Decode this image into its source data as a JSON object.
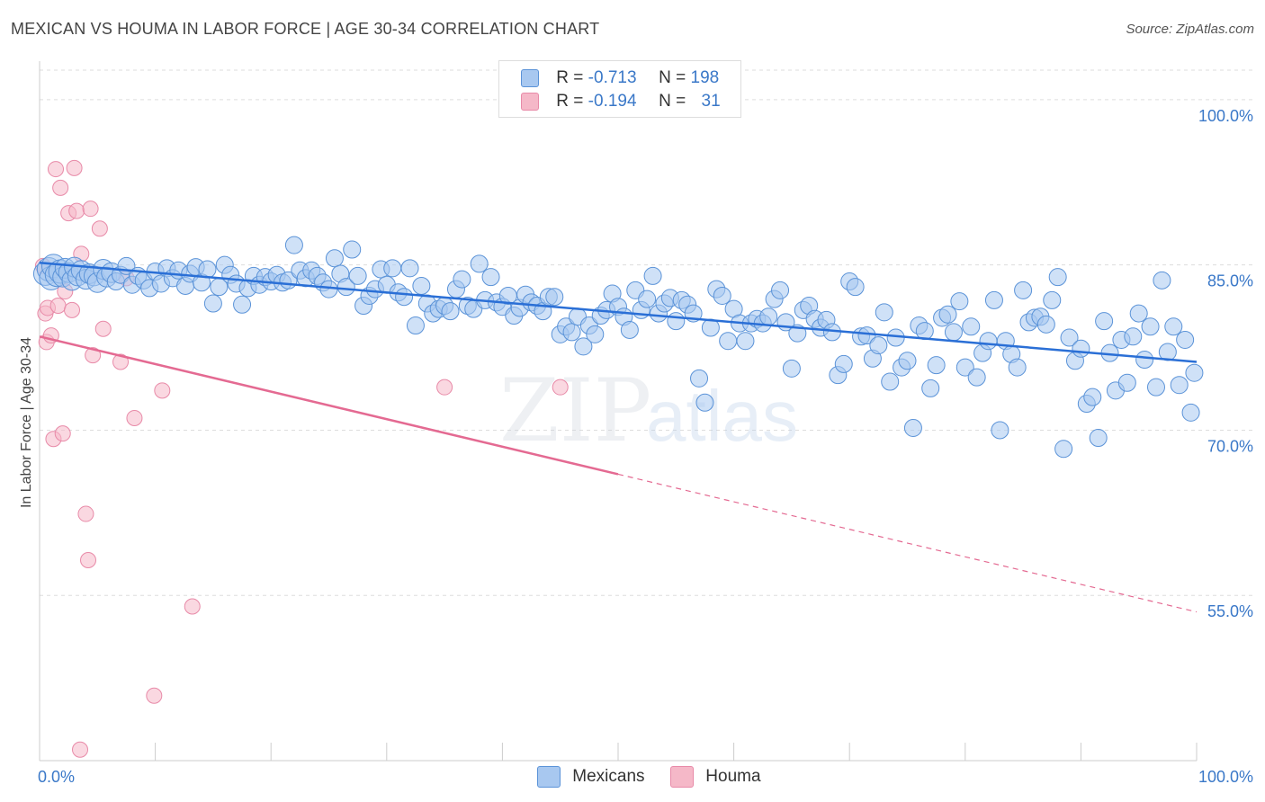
{
  "header": {
    "title": "MEXICAN VS HOUMA IN LABOR FORCE | AGE 30-34 CORRELATION CHART",
    "source": "Source: ZipAtlas.com"
  },
  "watermark": {
    "zip": "ZIP",
    "atlas": "atlas"
  },
  "legend": {
    "rows": [
      {
        "r_label": "R =",
        "r_value": "-0.713",
        "n_label": "N =",
        "n_value": "198"
      },
      {
        "r_label": "R =",
        "r_value": "-0.194",
        "n_label": "N =",
        "n_value": "31"
      }
    ],
    "bottom": [
      "Mexicans",
      "Houma"
    ]
  },
  "colors": {
    "mexicans_fill": "#a8c8f0",
    "mexicans_stroke": "#5b93d8",
    "mexicans_line": "#2a6fd6",
    "houma_fill": "#f5b8c8",
    "houma_stroke": "#e88aa8",
    "houma_line": "#e46a92",
    "tick_label": "#3a78c8",
    "grid": "#dddddd"
  },
  "chart_data": {
    "type": "scatter",
    "title": "MEXICAN VS HOUMA IN LABOR FORCE | AGE 30-34 CORRELATION CHART",
    "xlabel": "",
    "ylabel": "In Labor Force | Age 30-34",
    "xlim": [
      0,
      100
    ],
    "ylim": [
      40,
      103.5
    ],
    "x_tick_labels": [
      "0.0%",
      "100.0%"
    ],
    "y_ticks": [
      55,
      70,
      85,
      100
    ],
    "y_tick_labels": [
      "55.0%",
      "70.0%",
      "85.0%",
      "100.0%"
    ],
    "grid": true,
    "legend_position": "top-center",
    "series": [
      {
        "name": "Mexicans",
        "R": -0.713,
        "N": 198,
        "trend": {
          "x": [
            0,
            100
          ],
          "y": [
            85.2,
            76.2
          ]
        },
        "points": [
          [
            0.5,
            84.2
          ],
          [
            0.8,
            84.6
          ],
          [
            1.0,
            83.8
          ],
          [
            1.2,
            84.9
          ],
          [
            1.5,
            84.1
          ],
          [
            1.8,
            84.4
          ],
          [
            2.0,
            83.9
          ],
          [
            2.2,
            84.7
          ],
          [
            2.5,
            84.3
          ],
          [
            2.8,
            83.6
          ],
          [
            3.0,
            84.8
          ],
          [
            3.3,
            84.0
          ],
          [
            3.6,
            84.5
          ],
          [
            4.0,
            83.7
          ],
          [
            4.3,
            84.2
          ],
          [
            4.7,
            84.0
          ],
          [
            5.0,
            83.4
          ],
          [
            5.5,
            84.6
          ],
          [
            5.8,
            83.9
          ],
          [
            6.2,
            84.3
          ],
          [
            6.6,
            83.5
          ],
          [
            7.0,
            84.1
          ],
          [
            7.5,
            84.9
          ],
          [
            8.0,
            83.2
          ],
          [
            8.5,
            84.0
          ],
          [
            9.0,
            83.6
          ],
          [
            9.5,
            82.9
          ],
          [
            10.0,
            84.4
          ],
          [
            10.5,
            83.3
          ],
          [
            11.0,
            84.7
          ],
          [
            11.5,
            83.8
          ],
          [
            12.0,
            84.5
          ],
          [
            12.6,
            83.1
          ],
          [
            13.0,
            84.2
          ],
          [
            13.5,
            84.8
          ],
          [
            14.0,
            83.4
          ],
          [
            14.5,
            84.6
          ],
          [
            15.0,
            81.5
          ],
          [
            15.5,
            83.0
          ],
          [
            16.0,
            85.0
          ],
          [
            16.5,
            84.1
          ],
          [
            17.0,
            83.3
          ],
          [
            17.5,
            81.4
          ],
          [
            18.0,
            82.9
          ],
          [
            18.5,
            84.0
          ],
          [
            19.0,
            83.2
          ],
          [
            19.5,
            83.9
          ],
          [
            20.0,
            83.5
          ],
          [
            20.5,
            84.1
          ],
          [
            21.0,
            83.4
          ],
          [
            21.5,
            83.6
          ],
          [
            22.0,
            86.8
          ],
          [
            22.5,
            84.5
          ],
          [
            23.0,
            83.8
          ],
          [
            23.5,
            84.5
          ],
          [
            24.0,
            84.0
          ],
          [
            24.5,
            83.4
          ],
          [
            25.0,
            82.8
          ],
          [
            25.5,
            85.6
          ],
          [
            26.0,
            84.2
          ],
          [
            26.5,
            83.0
          ],
          [
            27.0,
            86.4
          ],
          [
            27.5,
            84.0
          ],
          [
            28.0,
            81.3
          ],
          [
            28.5,
            82.2
          ],
          [
            29.0,
            82.8
          ],
          [
            29.5,
            84.6
          ],
          [
            30.0,
            83.2
          ],
          [
            30.5,
            84.7
          ],
          [
            31.0,
            82.5
          ],
          [
            31.5,
            82.1
          ],
          [
            32.0,
            84.7
          ],
          [
            32.5,
            79.5
          ],
          [
            33.0,
            83.1
          ],
          [
            33.5,
            81.5
          ],
          [
            34.0,
            80.6
          ],
          [
            34.5,
            81.0
          ],
          [
            35.0,
            81.3
          ],
          [
            35.5,
            80.8
          ],
          [
            36.0,
            82.8
          ],
          [
            36.5,
            83.7
          ],
          [
            37.0,
            81.3
          ],
          [
            37.5,
            81.0
          ],
          [
            38.0,
            85.1
          ],
          [
            38.5,
            81.8
          ],
          [
            39.0,
            83.9
          ],
          [
            39.5,
            81.6
          ],
          [
            40.0,
            81.2
          ],
          [
            40.5,
            82.2
          ],
          [
            41.0,
            80.4
          ],
          [
            41.5,
            81.1
          ],
          [
            42.0,
            82.3
          ],
          [
            42.5,
            81.6
          ],
          [
            43.0,
            81.3
          ],
          [
            43.5,
            80.8
          ],
          [
            44.0,
            82.1
          ],
          [
            44.5,
            82.1
          ],
          [
            45.0,
            78.7
          ],
          [
            45.5,
            79.4
          ],
          [
            46.0,
            78.9
          ],
          [
            46.5,
            80.3
          ],
          [
            47.0,
            77.6
          ],
          [
            47.5,
            79.5
          ],
          [
            48.0,
            78.7
          ],
          [
            48.5,
            80.4
          ],
          [
            49.0,
            80.9
          ],
          [
            49.5,
            82.4
          ],
          [
            50.0,
            81.2
          ],
          [
            50.5,
            80.3
          ],
          [
            51.0,
            79.1
          ],
          [
            51.5,
            82.7
          ],
          [
            52.0,
            80.9
          ],
          [
            52.5,
            81.9
          ],
          [
            53.0,
            84.0
          ],
          [
            53.5,
            80.6
          ],
          [
            54.0,
            81.5
          ],
          [
            54.5,
            82.0
          ],
          [
            55.0,
            79.9
          ],
          [
            55.5,
            81.8
          ],
          [
            56.0,
            81.4
          ],
          [
            56.5,
            80.6
          ],
          [
            57.0,
            74.7
          ],
          [
            57.5,
            72.5
          ],
          [
            58.0,
            79.3
          ],
          [
            58.5,
            82.8
          ],
          [
            59.0,
            82.2
          ],
          [
            59.5,
            78.1
          ],
          [
            60.0,
            81.0
          ],
          [
            60.5,
            79.7
          ],
          [
            61.0,
            78.1
          ],
          [
            61.5,
            79.7
          ],
          [
            62.0,
            80.1
          ],
          [
            62.5,
            79.7
          ],
          [
            63.0,
            80.3
          ],
          [
            63.5,
            81.9
          ],
          [
            64.0,
            82.7
          ],
          [
            64.5,
            79.8
          ],
          [
            65.0,
            75.6
          ],
          [
            65.5,
            78.8
          ],
          [
            66.0,
            80.9
          ],
          [
            66.5,
            81.3
          ],
          [
            67.0,
            80.1
          ],
          [
            67.5,
            79.3
          ],
          [
            68.0,
            80.0
          ],
          [
            68.5,
            78.9
          ],
          [
            69.0,
            75.0
          ],
          [
            69.5,
            76.0
          ],
          [
            70.0,
            83.5
          ],
          [
            70.5,
            83.0
          ],
          [
            71.0,
            78.5
          ],
          [
            71.5,
            78.6
          ],
          [
            72.0,
            76.5
          ],
          [
            72.5,
            77.7
          ],
          [
            73.0,
            80.7
          ],
          [
            73.5,
            74.4
          ],
          [
            74.0,
            78.4
          ],
          [
            74.5,
            75.7
          ],
          [
            75.0,
            76.3
          ],
          [
            75.5,
            70.2
          ],
          [
            76.0,
            79.5
          ],
          [
            76.5,
            79.0
          ],
          [
            77.0,
            73.8
          ],
          [
            77.5,
            75.9
          ],
          [
            78.0,
            80.2
          ],
          [
            78.5,
            80.5
          ],
          [
            79.0,
            78.9
          ],
          [
            79.5,
            81.7
          ],
          [
            80.0,
            75.7
          ],
          [
            80.5,
            79.4
          ],
          [
            81.0,
            74.8
          ],
          [
            81.5,
            77.0
          ],
          [
            82.0,
            78.1
          ],
          [
            82.5,
            81.8
          ],
          [
            83.0,
            70.0
          ],
          [
            83.5,
            78.1
          ],
          [
            84.0,
            76.9
          ],
          [
            84.5,
            75.7
          ],
          [
            85.0,
            82.7
          ],
          [
            85.5,
            79.8
          ],
          [
            86.0,
            80.2
          ],
          [
            86.5,
            80.3
          ],
          [
            87.0,
            79.6
          ],
          [
            87.5,
            81.8
          ],
          [
            88.0,
            83.9
          ],
          [
            88.5,
            68.3
          ],
          [
            89.0,
            78.4
          ],
          [
            89.5,
            76.3
          ],
          [
            90.0,
            77.4
          ],
          [
            90.5,
            72.4
          ],
          [
            91.0,
            73.0
          ],
          [
            91.5,
            69.3
          ],
          [
            92.0,
            79.9
          ],
          [
            92.5,
            77.0
          ],
          [
            93.0,
            73.6
          ],
          [
            93.5,
            78.2
          ],
          [
            94.0,
            74.3
          ],
          [
            94.5,
            78.5
          ],
          [
            95.0,
            80.6
          ],
          [
            95.5,
            76.4
          ],
          [
            96.0,
            79.4
          ],
          [
            96.5,
            73.9
          ],
          [
            97.0,
            83.6
          ],
          [
            97.5,
            77.1
          ],
          [
            98.0,
            79.4
          ],
          [
            98.5,
            74.1
          ],
          [
            99.0,
            78.2
          ],
          [
            99.5,
            71.6
          ],
          [
            99.8,
            75.2
          ]
        ]
      },
      {
        "name": "Houma",
        "R": -0.194,
        "N": 31,
        "trend": {
          "x": [
            0,
            100
          ],
          "y": [
            78.5,
            53.5
          ],
          "solid_until_x": 50
        },
        "points": [
          [
            0.3,
            84.9
          ],
          [
            0.5,
            80.6
          ],
          [
            0.6,
            78.0
          ],
          [
            0.7,
            81.1
          ],
          [
            1.0,
            78.6
          ],
          [
            1.2,
            69.2
          ],
          [
            1.4,
            93.7
          ],
          [
            1.6,
            81.3
          ],
          [
            1.8,
            92.0
          ],
          [
            2.0,
            69.7
          ],
          [
            2.2,
            82.6
          ],
          [
            2.5,
            89.7
          ],
          [
            2.8,
            80.9
          ],
          [
            3.0,
            93.8
          ],
          [
            3.2,
            89.9
          ],
          [
            3.6,
            86.0
          ],
          [
            4.0,
            62.4
          ],
          [
            4.2,
            58.2
          ],
          [
            4.4,
            90.1
          ],
          [
            4.6,
            76.8
          ],
          [
            5.2,
            88.3
          ],
          [
            5.5,
            79.2
          ],
          [
            7.0,
            76.2
          ],
          [
            7.5,
            83.8
          ],
          [
            8.2,
            71.1
          ],
          [
            9.9,
            45.9
          ],
          [
            10.6,
            73.6
          ],
          [
            13.2,
            54.0
          ],
          [
            35.0,
            73.9
          ],
          [
            45.0,
            73.9
          ],
          [
            3.5,
            41.0
          ]
        ]
      }
    ]
  }
}
